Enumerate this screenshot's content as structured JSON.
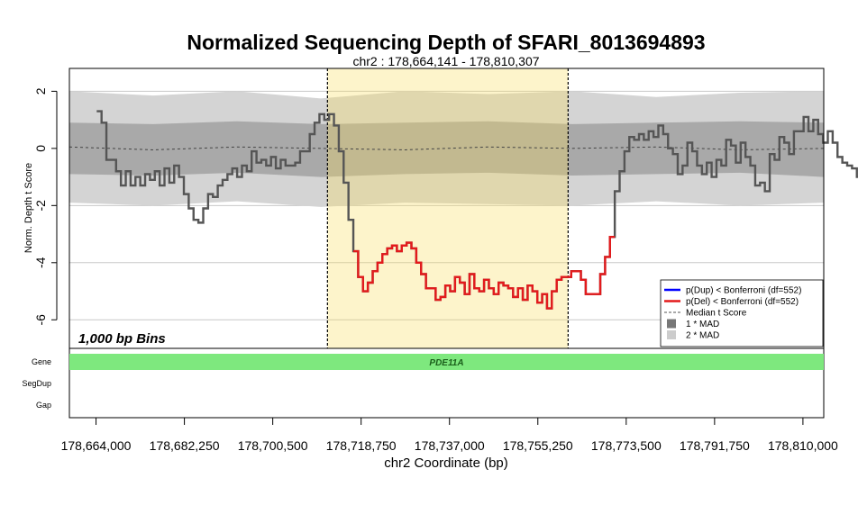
{
  "chart_data": {
    "type": "line",
    "title": "Normalized Sequencing Depth of SFARI_8013694893",
    "subtitle": "chr2 : 178,664,141 - 178,810,307",
    "xlabel": "chr2 Coordinate (bp)",
    "ylabel": "Norm. Depth t Score",
    "bins_label": "1,000 bp Bins",
    "xlim": [
      178658500,
      178814300
    ],
    "ylim": [
      -7,
      2.8
    ],
    "x_ticks": [
      178664000,
      178682250,
      178700500,
      178718750,
      178737000,
      178755250,
      178773500,
      178791750,
      178810000
    ],
    "x_tick_labels": [
      "178,664,000",
      "178,682,250",
      "178,700,500",
      "178,718,750",
      "178,737,000",
      "178,755,250",
      "178,773,500",
      "178,791,750",
      "178,810,000"
    ],
    "y_ticks": [
      2,
      0,
      -2,
      -4,
      -6
    ],
    "y_tick_labels": [
      "2",
      "0",
      "-2",
      "-4",
      "-6"
    ],
    "highlight_region": [
      178711800,
      178761500
    ],
    "series": [
      {
        "name": "Norm. Depth t Score",
        "color": "#555555",
        "x_start": 178664141,
        "bin_width": 1000,
        "values": [
          1.3,
          0.9,
          -0.4,
          -0.4,
          -0.8,
          -1.3,
          -0.8,
          -1.3,
          -1.0,
          -1.3,
          -0.9,
          -1.1,
          -0.8,
          -1.3,
          -0.7,
          -1.2,
          -0.6,
          -1.0,
          -1.6,
          -2.1,
          -2.5,
          -2.6,
          -2.1,
          -1.6,
          -1.7,
          -1.3,
          -1.1,
          -0.9,
          -0.7,
          -1.0,
          -0.6,
          -0.8,
          -0.1,
          -0.5,
          -0.4,
          -0.6,
          -0.3,
          -0.7,
          -0.4,
          -0.6,
          -0.6,
          -0.5,
          -0.1,
          -0.1,
          0.5,
          0.9,
          1.2,
          1.0,
          1.2,
          0.8,
          -0.1,
          -1.2,
          -2.5,
          -3.6,
          -4.5,
          -5.0,
          -4.7,
          -4.3,
          -4.0,
          -3.7,
          -3.5,
          -3.4,
          -3.6,
          -3.4,
          -3.3,
          -3.5,
          -4.0,
          -4.4,
          -4.9,
          -4.9,
          -5.3,
          -5.2,
          -4.8,
          -5.0,
          -4.5,
          -4.7,
          -5.1,
          -4.4,
          -4.9,
          -5.0,
          -4.6,
          -4.9,
          -5.1,
          -4.7,
          -4.8,
          -4.9,
          -5.2,
          -4.9,
          -5.3,
          -4.8,
          -5.0,
          -5.4,
          -5.1,
          -5.6,
          -5.0,
          -4.6,
          -4.5,
          -4.5,
          -4.3,
          -4.3,
          -4.6,
          -5.1,
          -5.1,
          -5.1,
          -4.4,
          -3.8,
          -3.1,
          -1.5,
          -0.8,
          -0.1,
          0.4,
          0.3,
          0.5,
          0.3,
          0.6,
          0.4,
          0.8,
          0.5,
          0.0,
          -0.2,
          -0.9,
          -0.6,
          0.2,
          -0.1,
          -0.6,
          -0.9,
          -0.5,
          -1.0,
          -0.4,
          -0.6,
          0.3,
          0.1,
          -0.5,
          0.2,
          -0.3,
          -0.6,
          -1.3,
          -1.2,
          -1.5,
          -0.2,
          -0.4,
          0.4,
          0.2,
          -0.2,
          0.6,
          0.6,
          1.1,
          0.6,
          1.0,
          0.5,
          0.2,
          0.6,
          0.2,
          -0.3,
          -0.5,
          -0.6,
          -0.7,
          -1.0
        ]
      },
      {
        "name": "p(Del) < Bonferroni (df=552)",
        "color": "#e31a1c",
        "x_start": 178664141,
        "bin_width": 1000,
        "index_range": [
          53,
          106
        ]
      }
    ],
    "bands": {
      "median_y": [
        0.05,
        -0.05,
        0.05,
        0.0,
        -0.05,
        0.05,
        0.0,
        0.05,
        -0.05,
        0.0
      ],
      "mad1_upper": [
        0.9,
        0.85,
        0.95,
        0.85,
        0.9,
        0.95,
        0.85,
        0.9,
        0.95,
        0.9
      ],
      "mad1_lower": [
        -0.9,
        -0.95,
        -0.85,
        -1.0,
        -0.9,
        -0.85,
        -0.95,
        -0.9,
        -0.85,
        -1.0
      ],
      "mad2_upper": [
        2.0,
        1.85,
        2.0,
        1.75,
        2.0,
        1.9,
        2.0,
        1.8,
        1.95,
        2.0
      ],
      "mad2_lower": [
        -1.9,
        -2.0,
        -1.85,
        -2.05,
        -1.9,
        -1.95,
        -2.0,
        -1.85,
        -2.0,
        -1.9
      ]
    },
    "legend": {
      "position": "bottom-right",
      "entries": [
        {
          "label": "p(Dup) < Bonferroni (df=552)",
          "symbol": "line",
          "color": "#0000ff"
        },
        {
          "label": "p(Del) < Bonferroni (df=552)",
          "symbol": "line",
          "color": "#e31a1c"
        },
        {
          "label": "Median t Score",
          "symbol": "dashed",
          "color": "#555555"
        },
        {
          "label": "1 * MAD",
          "symbol": "square",
          "color": "#777777"
        },
        {
          "label": "2 * MAD",
          "symbol": "square",
          "color": "#cccccc"
        }
      ]
    },
    "tracks": [
      {
        "label": "Gene",
        "features": [
          {
            "name": "PDE11A",
            "start": 178658500,
            "end": 178814300,
            "color": "#7ee87e"
          }
        ]
      },
      {
        "label": "SegDup",
        "features": []
      },
      {
        "label": "Gap",
        "features": []
      }
    ],
    "colors": {
      "highlight": "#fdf3c8",
      "mad1": "#a9a9a9",
      "mad2": "#d4d4d4",
      "gridline": "#c8c8c8"
    }
  }
}
